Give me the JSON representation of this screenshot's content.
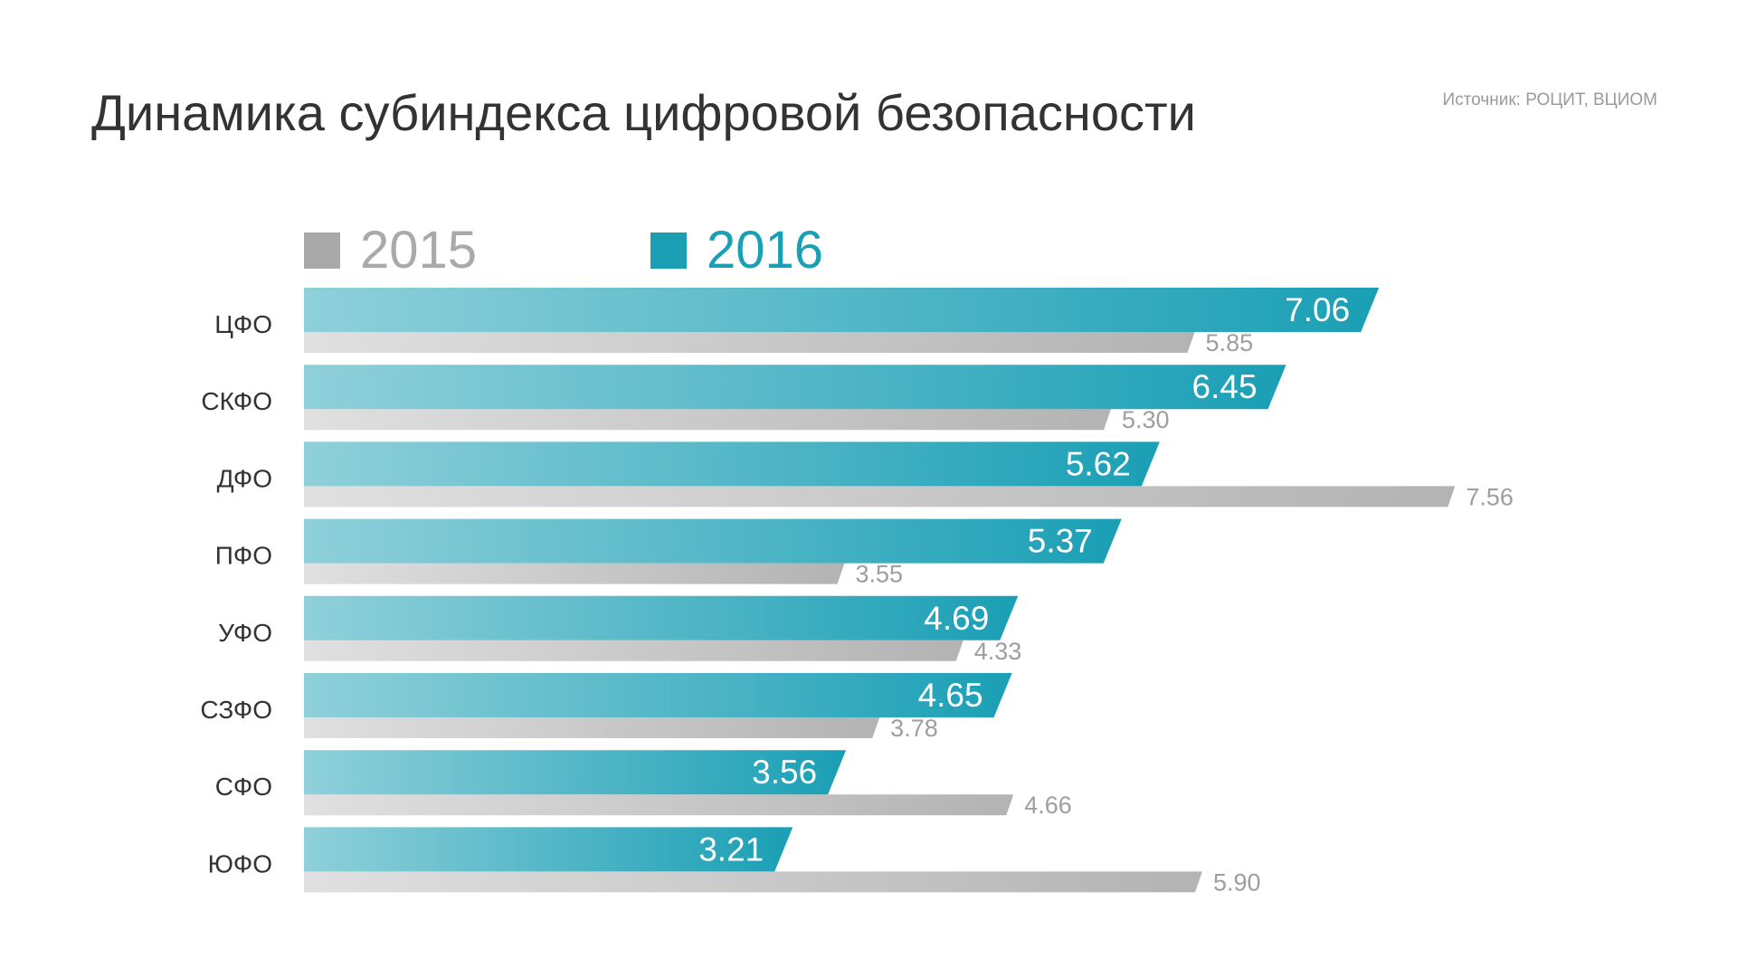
{
  "title": "Динамика субиндекса цифровой безопасности",
  "source": "Источник: РОЦИТ, ВЦИОМ",
  "colors": {
    "series_2015": "#a9a9a9",
    "series_2016": "#1a9fb5",
    "category_text": "#333333",
    "label_2015": "#9e9e9e",
    "label_2016": "#ffffff"
  },
  "chart_data": {
    "type": "bar",
    "orientation": "horizontal",
    "title": "Динамика субиндекса цифровой безопасности",
    "categories": [
      "ЦФО",
      "СКФО",
      "ДФО",
      "ПФО",
      "УФО",
      "СЗФО",
      "СФО",
      "ЮФО"
    ],
    "series": [
      {
        "name": "2016",
        "values": [
          7.06,
          6.45,
          5.62,
          5.37,
          4.69,
          4.65,
          3.56,
          3.21
        ],
        "labels": [
          "7.06",
          "6.45",
          "5.62",
          "5.37",
          "4.69",
          "4.65",
          "3.56",
          "3.21"
        ]
      },
      {
        "name": "2015",
        "values": [
          5.85,
          5.3,
          7.56,
          3.55,
          4.33,
          3.78,
          4.66,
          5.9
        ],
        "labels": [
          "5.85",
          "5.30",
          "7.56",
          "3.55",
          "4.33",
          "3.78",
          "4.66",
          "5.90"
        ]
      }
    ],
    "legend_position": "top-left",
    "grid": false,
    "xlim": [
      0,
      8
    ]
  }
}
